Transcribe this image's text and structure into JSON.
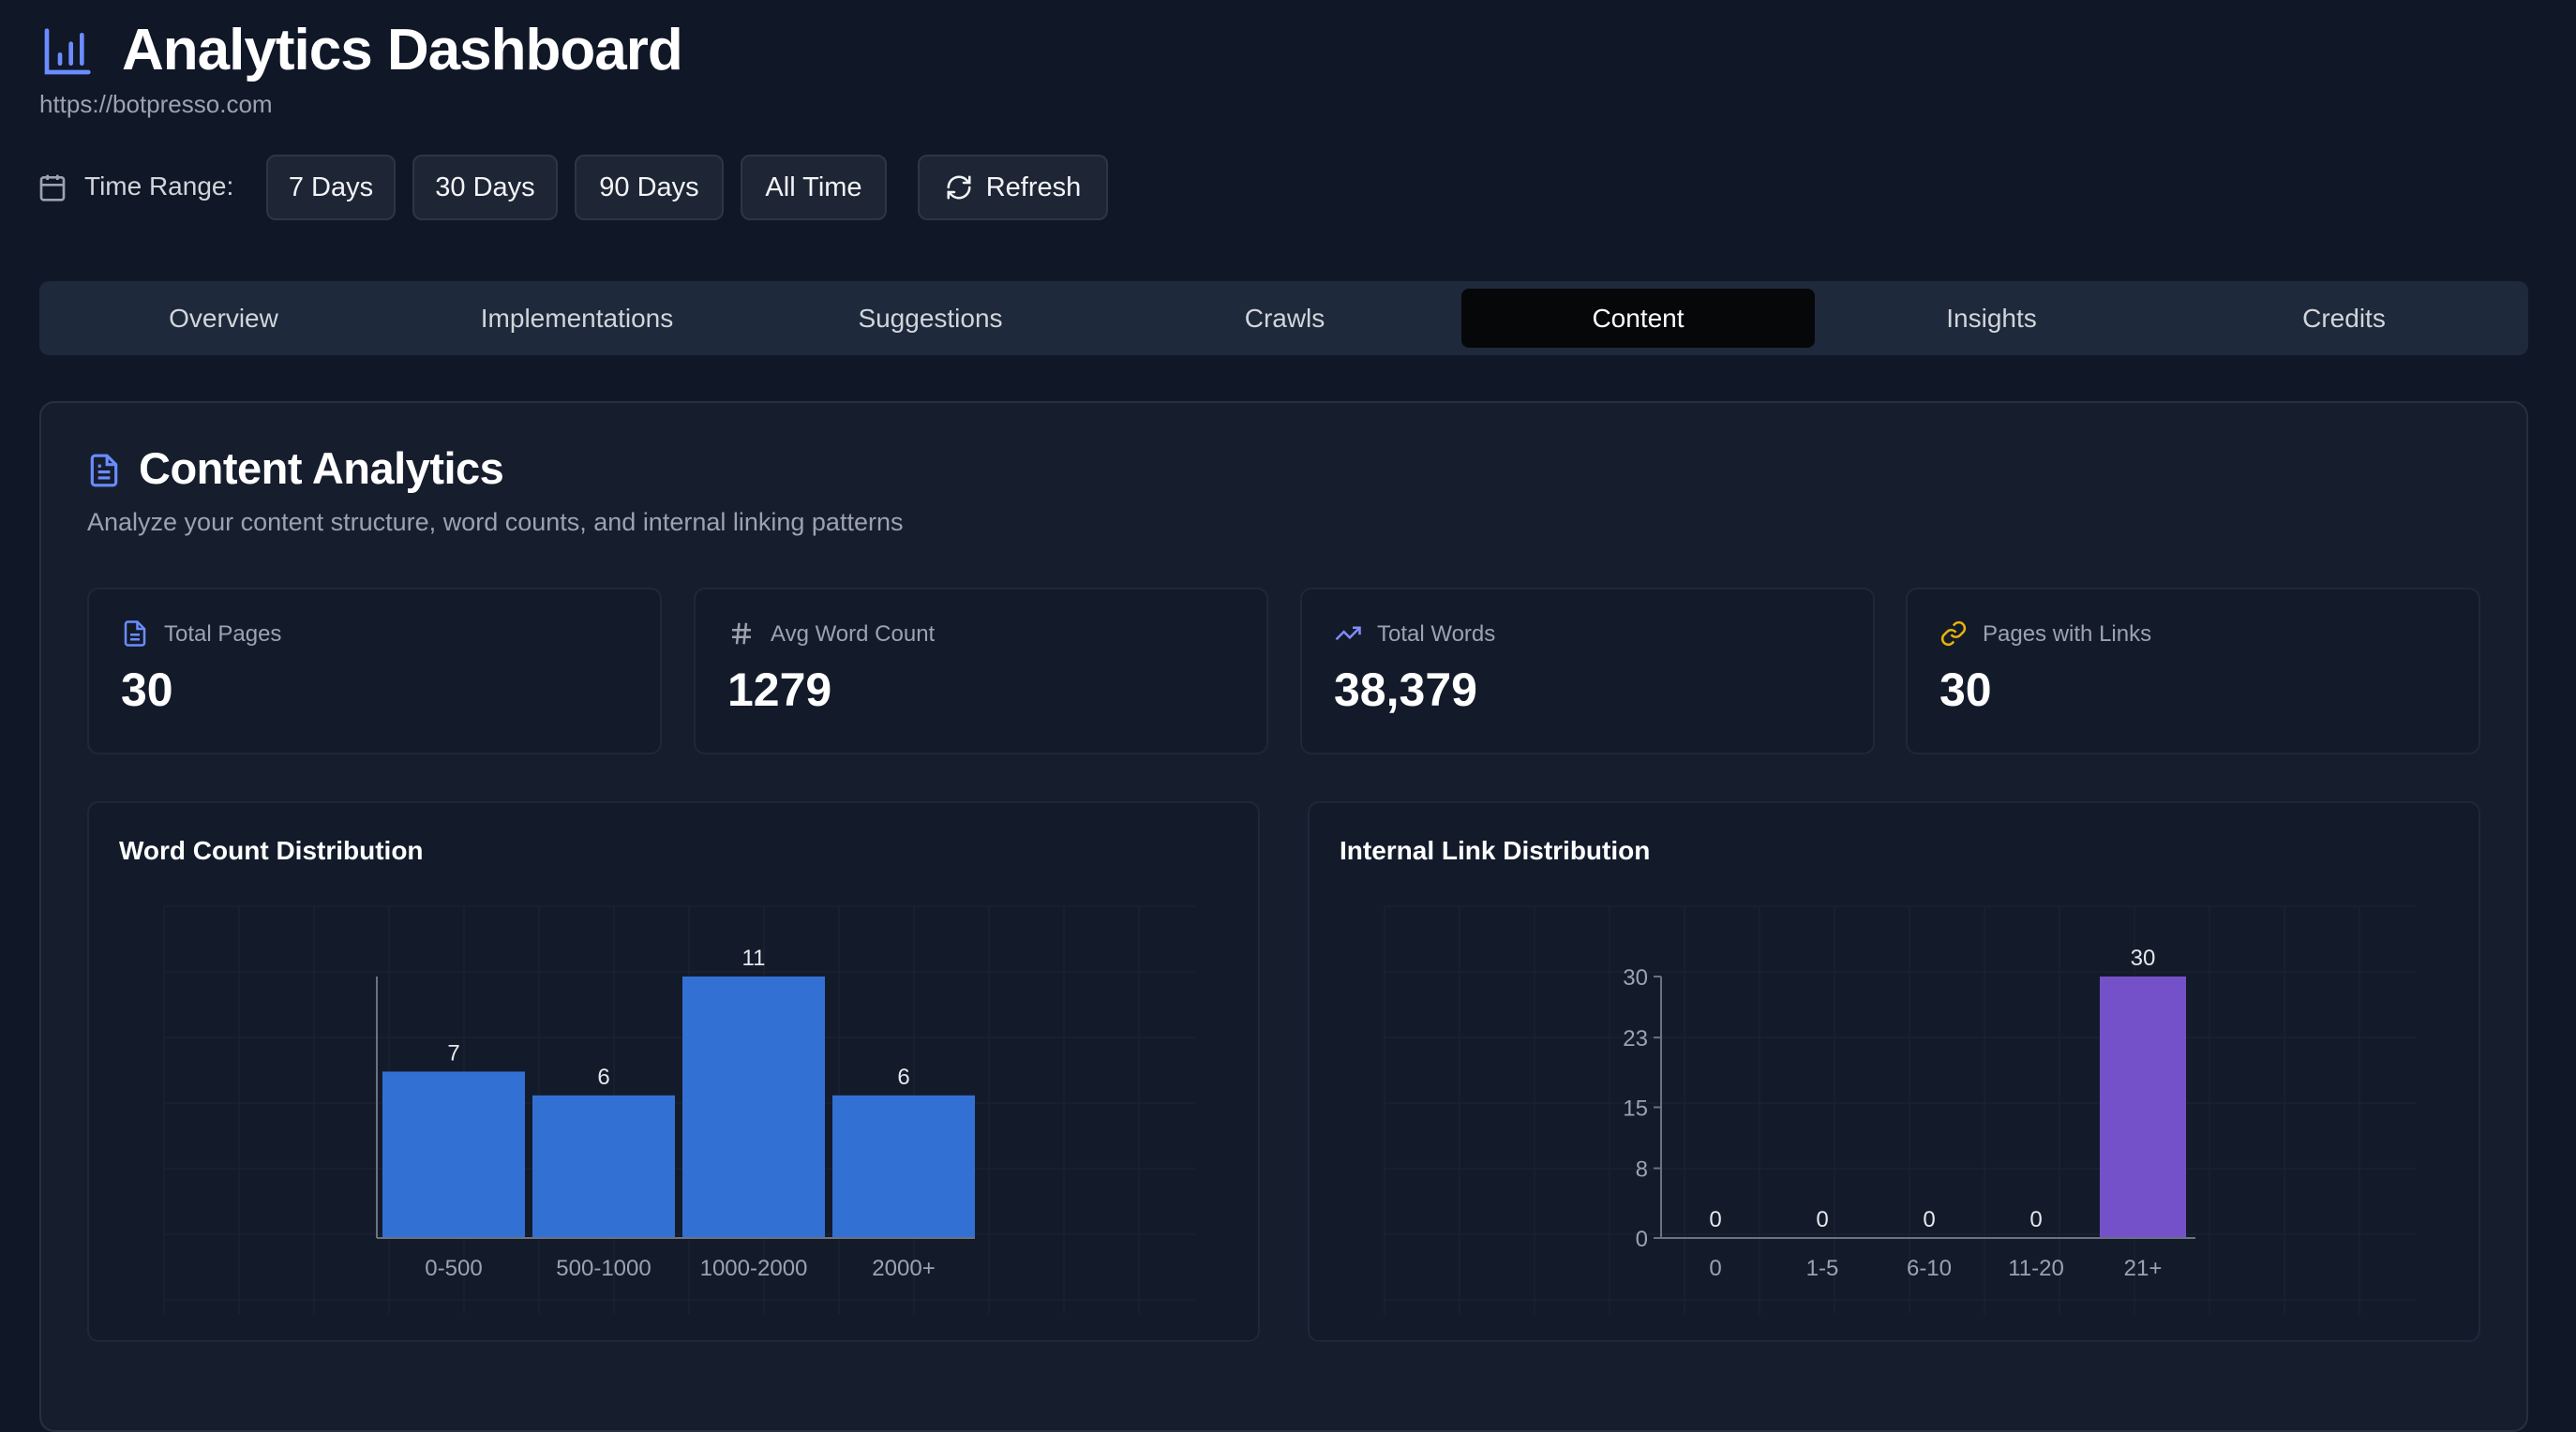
{
  "header": {
    "title": "Analytics Dashboard",
    "url": "https://botpresso.com",
    "icon": "bar-chart-icon"
  },
  "time_range": {
    "label": "Time Range:",
    "options": [
      "7 Days",
      "30 Days",
      "90 Days",
      "All Time"
    ],
    "refresh_label": "Refresh"
  },
  "tabs": {
    "items": [
      "Overview",
      "Implementations",
      "Suggestions",
      "Crawls",
      "Content",
      "Insights",
      "Credits"
    ],
    "active": "Content"
  },
  "content": {
    "title": "Content Analytics",
    "subtitle": "Analyze your content structure, word counts, and internal linking patterns"
  },
  "stats": [
    {
      "label": "Total Pages",
      "value": "30",
      "icon": "file-text-icon",
      "color": "#6b8cff"
    },
    {
      "label": "Avg Word Count",
      "value": "1279",
      "icon": "hash-icon",
      "color": "#9ca3af"
    },
    {
      "label": "Total Words",
      "value": "38,379",
      "icon": "trending-up-icon",
      "color": "#818cf8"
    },
    {
      "label": "Pages with Links",
      "value": "30",
      "icon": "link-icon",
      "color": "#eab308"
    }
  ],
  "chart_data": [
    {
      "type": "bar",
      "title": "Word Count Distribution",
      "categories": [
        "0-500",
        "500-1000",
        "1000-2000",
        "2000+"
      ],
      "values": [
        7,
        6,
        11,
        6
      ],
      "ylim": [
        0,
        11
      ],
      "color": "#3370d4",
      "grid": true
    },
    {
      "type": "bar",
      "title": "Internal Link Distribution",
      "categories": [
        "0",
        "1-5",
        "6-10",
        "11-20",
        "21+"
      ],
      "values": [
        0,
        0,
        0,
        0,
        30
      ],
      "ylim": [
        0,
        30
      ],
      "yticks": [
        0,
        8,
        15,
        23,
        30
      ],
      "color": "#7551c9",
      "grid": true
    }
  ]
}
